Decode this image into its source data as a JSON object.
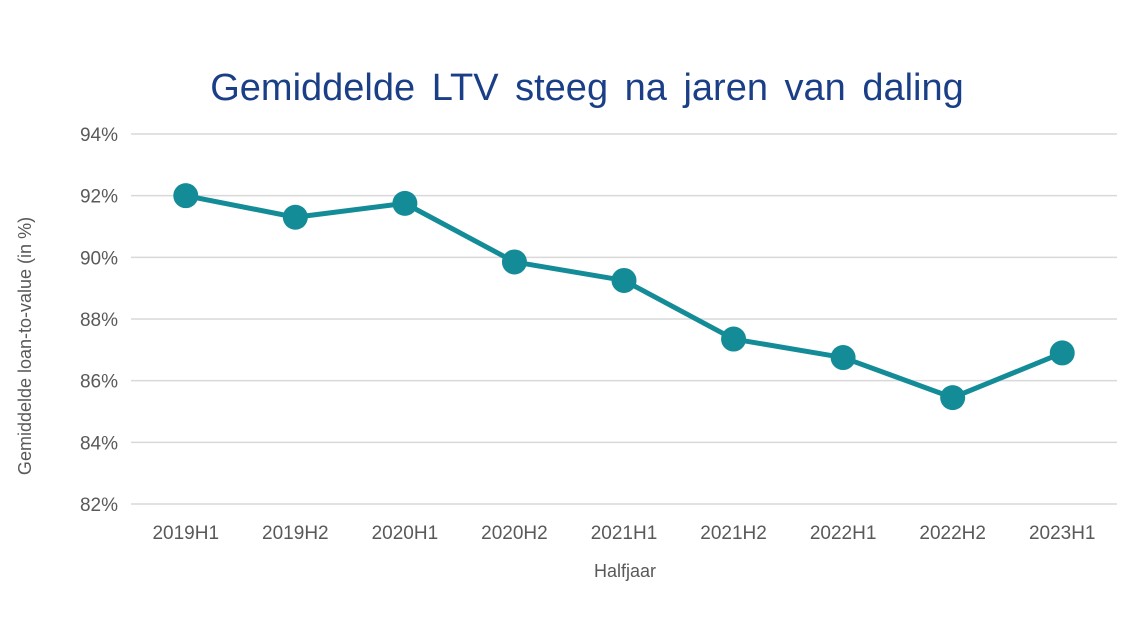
{
  "chart_data": {
    "type": "line",
    "title": "Gemiddelde LTV steeg na jaren van daling",
    "xlabel": "Halfjaar",
    "ylabel": "Gemiddelde loan-to-value (in %)",
    "categories": [
      "2019H1",
      "2019H2",
      "2020H1",
      "2020H2",
      "2021H1",
      "2021H2",
      "2022H1",
      "2022H2",
      "2023H1"
    ],
    "series": [
      {
        "values": [
          92.0,
          91.3,
          91.75,
          89.85,
          89.25,
          87.35,
          86.75,
          85.45,
          86.9
        ]
      }
    ],
    "ylim": [
      82,
      94
    ],
    "yticks": [
      82,
      84,
      86,
      88,
      90,
      92,
      94
    ],
    "ytick_labels": [
      "82%",
      "84%",
      "86%",
      "88%",
      "90%",
      "92%",
      "94%"
    ],
    "grid": true,
    "legend": "none",
    "colors": {
      "line": "#148c98",
      "title": "#1a3f86",
      "gridline": "#d9d9d9",
      "tick_text": "#595959"
    }
  }
}
